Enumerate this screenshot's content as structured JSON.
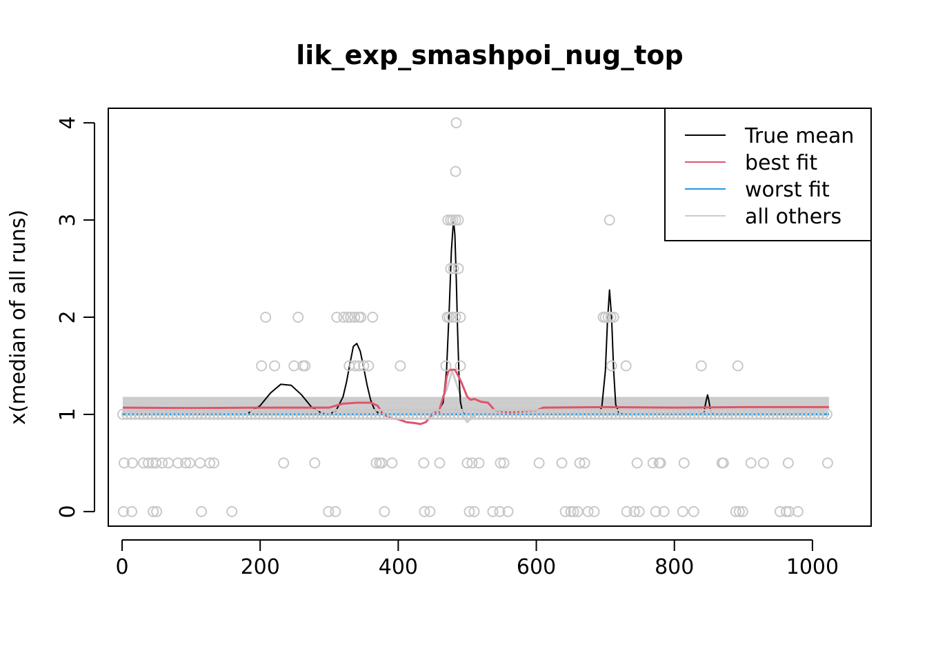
{
  "chart_data": {
    "type": "scatter",
    "title": "lik_exp_smashpoi_nug_top",
    "xlabel": "",
    "ylabel": "x(median of all runs)",
    "xlim": [
      -20,
      1085
    ],
    "ylim": [
      -0.15,
      4.15
    ],
    "x_ticks": [
      0,
      200,
      400,
      600,
      800,
      1000
    ],
    "y_ticks": [
      0,
      1,
      2,
      3,
      4
    ],
    "grid": false,
    "legend": {
      "position": "top-right",
      "entries": [
        {
          "label": "True mean",
          "color": "#000000"
        },
        {
          "label": "best fit",
          "color": "#DF536B"
        },
        {
          "label": "worst fit",
          "color": "#2297E6"
        },
        {
          "label": "all others",
          "color": "#CCCCCC"
        }
      ]
    },
    "points": {
      "color": "#C8C8C8",
      "baseline": {
        "y": 1,
        "x_from": 1,
        "x_to": 1024
      },
      "values": [
        [
          484,
          4
        ],
        [
          483,
          3.5
        ],
        [
          472,
          3
        ],
        [
          476,
          3
        ],
        [
          479,
          3
        ],
        [
          483,
          3
        ],
        [
          487,
          3
        ],
        [
          706,
          3
        ],
        [
          476,
          2.5
        ],
        [
          480,
          2.5
        ],
        [
          487,
          2.5
        ],
        [
          208,
          2
        ],
        [
          255,
          2
        ],
        [
          311,
          2
        ],
        [
          321,
          2
        ],
        [
          327,
          2
        ],
        [
          331,
          2
        ],
        [
          337,
          2
        ],
        [
          343,
          2
        ],
        [
          346,
          2
        ],
        [
          363,
          2
        ],
        [
          471,
          2
        ],
        [
          474,
          2
        ],
        [
          478,
          2
        ],
        [
          483,
          2
        ],
        [
          490,
          2
        ],
        [
          697,
          2
        ],
        [
          700,
          2
        ],
        [
          704,
          2
        ],
        [
          708,
          2
        ],
        [
          712,
          2
        ],
        [
          202,
          1.5
        ],
        [
          221,
          1.5
        ],
        [
          249,
          1.5
        ],
        [
          262,
          1.5
        ],
        [
          265,
          1.5
        ],
        [
          329,
          1.5
        ],
        [
          337,
          1.5
        ],
        [
          343,
          1.5
        ],
        [
          350,
          1.5
        ],
        [
          357,
          1.5
        ],
        [
          403,
          1.5
        ],
        [
          469,
          1.5
        ],
        [
          490,
          1.5
        ],
        [
          709,
          1.5
        ],
        [
          730,
          1.5
        ],
        [
          839,
          1.5
        ],
        [
          892,
          1.5
        ],
        [
          3,
          0.5
        ],
        [
          15,
          0.5
        ],
        [
          31,
          0.5
        ],
        [
          38,
          0.5
        ],
        [
          44,
          0.5
        ],
        [
          49,
          0.5
        ],
        [
          58,
          0.5
        ],
        [
          67,
          0.5
        ],
        [
          81,
          0.5
        ],
        [
          92,
          0.5
        ],
        [
          98,
          0.5
        ],
        [
          113,
          0.5
        ],
        [
          127,
          0.5
        ],
        [
          133,
          0.5
        ],
        [
          234,
          0.5
        ],
        [
          279,
          0.5
        ],
        [
          368,
          0.5
        ],
        [
          373,
          0.5
        ],
        [
          376,
          0.5
        ],
        [
          391,
          0.5
        ],
        [
          437,
          0.5
        ],
        [
          460,
          0.5
        ],
        [
          500,
          0.5
        ],
        [
          507,
          0.5
        ],
        [
          517,
          0.5
        ],
        [
          548,
          0.5
        ],
        [
          553,
          0.5
        ],
        [
          604,
          0.5
        ],
        [
          637,
          0.5
        ],
        [
          663,
          0.5
        ],
        [
          670,
          0.5
        ],
        [
          746,
          0.5
        ],
        [
          769,
          0.5
        ],
        [
          778,
          0.5
        ],
        [
          780,
          0.5
        ],
        [
          814,
          0.5
        ],
        [
          869,
          0.5
        ],
        [
          871,
          0.5
        ],
        [
          911,
          0.5
        ],
        [
          929,
          0.5
        ],
        [
          965,
          0.5
        ],
        [
          1022,
          0.5
        ],
        [
          2,
          0
        ],
        [
          14,
          0
        ],
        [
          45,
          0
        ],
        [
          50,
          0
        ],
        [
          115,
          0
        ],
        [
          159,
          0
        ],
        [
          299,
          0
        ],
        [
          309,
          0
        ],
        [
          380,
          0
        ],
        [
          438,
          0
        ],
        [
          446,
          0
        ],
        [
          503,
          0
        ],
        [
          510,
          0
        ],
        [
          537,
          0
        ],
        [
          547,
          0
        ],
        [
          559,
          0
        ],
        [
          642,
          0
        ],
        [
          650,
          0
        ],
        [
          654,
          0
        ],
        [
          660,
          0
        ],
        [
          675,
          0
        ],
        [
          684,
          0
        ],
        [
          731,
          0
        ],
        [
          742,
          0
        ],
        [
          749,
          0
        ],
        [
          773,
          0
        ],
        [
          785,
          0
        ],
        [
          812,
          0
        ],
        [
          828,
          0
        ],
        [
          889,
          0
        ],
        [
          894,
          0
        ],
        [
          899,
          0
        ],
        [
          953,
          0
        ],
        [
          962,
          0
        ],
        [
          966,
          0
        ],
        [
          979,
          0
        ]
      ]
    },
    "series": [
      {
        "name": "all others",
        "color": "#CCCCCC",
        "lines": [
          {
            "x": [
              1,
              1024
            ],
            "y": [
              1.17,
              1.17
            ]
          },
          {
            "x": [
              1,
              1024
            ],
            "y": [
              1.15,
              1.15
            ]
          },
          {
            "x": [
              1,
              1024
            ],
            "y": [
              1.13,
              1.13
            ]
          },
          {
            "x": [
              1,
              1024
            ],
            "y": [
              1.11,
              1.11
            ]
          },
          {
            "x": [
              1,
              1024
            ],
            "y": [
              1.09,
              1.09
            ]
          },
          {
            "x": [
              1,
              1024
            ],
            "y": [
              1.07,
              1.07
            ]
          },
          {
            "x": [
              1,
              1024
            ],
            "y": [
              1.05,
              1.05
            ]
          },
          {
            "x": [
              1,
              1024
            ],
            "y": [
              1.02,
              1.02
            ]
          },
          {
            "x": [
              1,
              150,
              200,
              250,
              300,
              400,
              440,
              460,
              470,
              478,
              485,
              495,
              505,
              520,
              600,
              800,
              1024
            ],
            "y": [
              1.03,
              1.04,
              1.15,
              1.16,
              1.15,
              1.12,
              1.1,
              1.12,
              1.25,
              1.45,
              1.3,
              1.1,
              1.05,
              1.04,
              1.04,
              1.08,
              1.08
            ]
          },
          {
            "x": [
              1,
              300,
              400,
              480,
              490,
              496,
              500,
              505,
              515,
              600,
              1024
            ],
            "y": [
              1.02,
              1.03,
              1.02,
              1.05,
              1.02,
              0.96,
              0.92,
              0.96,
              1.01,
              1.02,
              1.02
            ]
          }
        ]
      },
      {
        "name": "True mean",
        "color": "#000000",
        "lines": [
          {
            "x": [
              1,
              180,
              200,
              215,
              230,
              245,
              260,
              275,
              290,
              300,
              310,
              320,
              325,
              330,
              335,
              340,
              345,
              350,
              355,
              360,
              365,
              370,
              380,
              455,
              465,
              470,
              474,
              477,
              480,
              482,
              484,
              486,
              488,
              490,
              493,
              496,
              500,
              505,
              520,
              690,
              695,
              700,
              703,
              706,
              709,
              712,
              715,
              720,
              730,
              838,
              843,
              846,
              848,
              850,
              852,
              854,
              857,
              862,
              1024
            ],
            "y": [
              1,
              1,
              1.09,
              1.22,
              1.31,
              1.3,
              1.2,
              1.07,
              1.01,
              1,
              1.04,
              1.18,
              1.33,
              1.52,
              1.7,
              1.73,
              1.65,
              1.48,
              1.3,
              1.15,
              1.06,
              1.02,
              1,
              1,
              1.12,
              1.45,
              2.1,
              2.68,
              3,
              2.85,
              2.4,
              1.85,
              1.4,
              1.13,
              1.03,
              1,
              1,
              1,
              1,
              1,
              1.08,
              1.45,
              1.95,
              2.28,
              2.0,
              1.45,
              1.1,
              1.01,
              1,
              1,
              1.03,
              1.14,
              1.2,
              1.14,
              1.05,
              1.01,
              1,
              1,
              1
            ]
          }
        ]
      },
      {
        "name": "best fit",
        "color": "#DF536B",
        "lines": [
          {
            "x": [
              1,
              100,
              200,
              250,
              280,
              300,
              310,
              320,
              340,
              360,
              370,
              378,
              390,
              400,
              412,
              425,
              432,
              440,
              447,
              452,
              458,
              462,
              467,
              470,
              473,
              477,
              482,
              486,
              492,
              500,
              505,
              510,
              520,
              530,
              540,
              560,
              600,
              610,
              700,
              800,
              900,
              1024
            ],
            "y": [
              1.07,
              1.065,
              1.07,
              1.07,
              1.07,
              1.07,
              1.09,
              1.11,
              1.12,
              1.12,
              1.09,
              1.0,
              0.96,
              0.95,
              0.92,
              0.91,
              0.9,
              0.92,
              0.98,
              1.03,
              1.0,
              1.1,
              1.22,
              1.38,
              1.45,
              1.46,
              1.46,
              1.41,
              1.32,
              1.18,
              1.15,
              1.16,
              1.13,
              1.12,
              1.04,
              1.02,
              1.04,
              1.07,
              1.075,
              1.07,
              1.075,
              1.075
            ]
          }
        ]
      },
      {
        "name": "worst fit",
        "color": "#2297E6",
        "lines": [
          {
            "x": [
              1,
              1024
            ],
            "y": [
              1,
              1
            ]
          }
        ]
      }
    ]
  }
}
